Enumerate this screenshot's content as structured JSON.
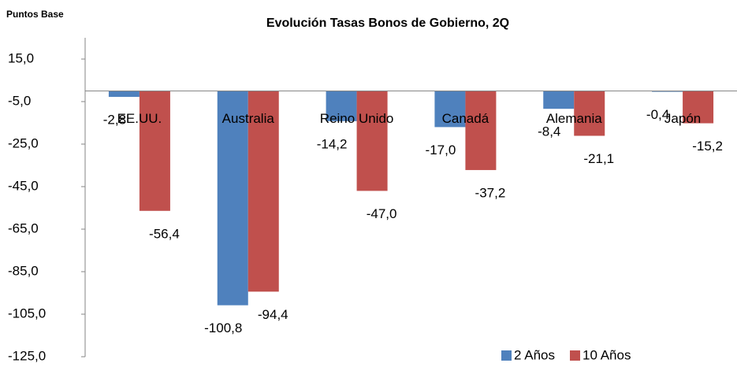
{
  "chart_data": {
    "type": "bar",
    "title": "Evolución  Tasas  Bonos  de  Gobierno,  2Q",
    "y_label": "Puntos Base",
    "categories": [
      "EE.UU.",
      "Australia",
      "Reino Unido",
      "Canadá",
      "Alemania",
      "Japón"
    ],
    "series": [
      {
        "name": "2 Años",
        "color": "#4f81bd",
        "values": [
          -2.8,
          -100.8,
          -14.2,
          -17.0,
          -8.4,
          -0.4
        ],
        "value_labels": [
          "-2,8",
          "-100,8",
          "-14,2",
          "-17,0",
          "-8,4",
          "-0,4"
        ]
      },
      {
        "name": "10 Años",
        "color": "#c0504d",
        "values": [
          -56.4,
          -94.4,
          -47.0,
          -37.2,
          -21.1,
          -15.2
        ],
        "value_labels": [
          "-56,4",
          "-94,4",
          "-47,0",
          "-37,2",
          "-21,1",
          "-15,2"
        ]
      }
    ],
    "ylim": [
      -125,
      25
    ],
    "yticks": [
      {
        "value": 15,
        "label": "15,0"
      },
      {
        "value": -5,
        "label": "-5,0"
      },
      {
        "value": -25,
        "label": "-25,0"
      },
      {
        "value": -45,
        "label": "-45,0"
      },
      {
        "value": -65,
        "label": "-65,0"
      },
      {
        "value": -85,
        "label": "-85,0"
      },
      {
        "value": -105,
        "label": "-105,0"
      },
      {
        "value": -125,
        "label": "-125,0"
      }
    ],
    "legend": "lower right"
  }
}
